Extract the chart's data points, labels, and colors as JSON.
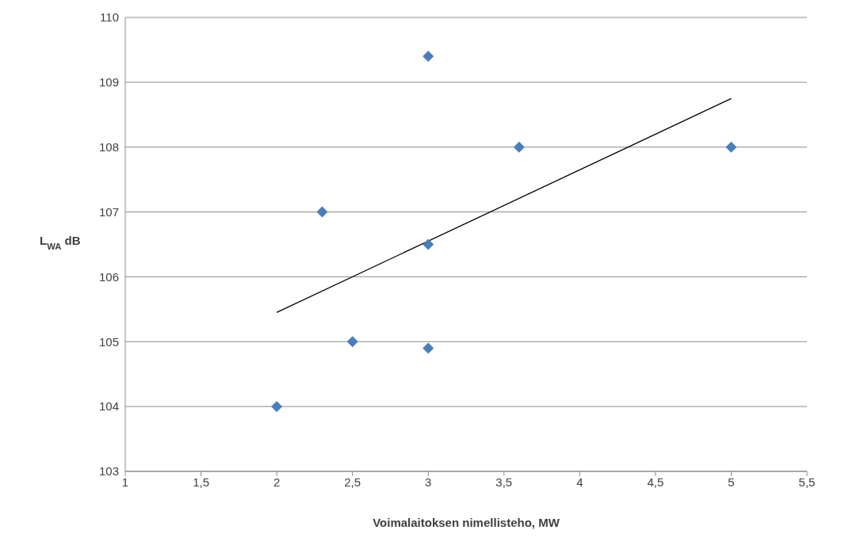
{
  "chart_data": {
    "type": "scatter",
    "xlabel": "Voimalaitoksen nimellisteho, MW",
    "ylabel": "L$_{WA}$ dB",
    "xlim": [
      1,
      5.5
    ],
    "xticks": [
      1,
      {
        "value": 1.5,
        "label": "1,5"
      },
      2,
      {
        "value": 2.5,
        "label": "2,5"
      },
      3,
      {
        "value": 3.5,
        "label": "3,5"
      },
      4,
      {
        "value": 4.5,
        "label": "4,5"
      },
      5,
      {
        "value": 5.5,
        "label": "5,5"
      }
    ],
    "ylim": [
      103,
      110
    ],
    "yticks": [
      103,
      104,
      105,
      106,
      107,
      108,
      109,
      110
    ],
    "grid": "y",
    "legend": false,
    "series": [
      {
        "color": "#4a7ebb",
        "marker": "diamond",
        "x": [
          2,
          2.3,
          2.5,
          3,
          3,
          3,
          3.6,
          5
        ],
        "values": [
          104,
          107,
          105,
          109.4,
          106.5,
          104.9,
          108,
          108
        ]
      },
      {
        "type": "line",
        "color": "#000000",
        "marker": "none",
        "line_style": "solid",
        "x": [
          2,
          5
        ],
        "values": [
          105.45,
          108.75
        ]
      }
    ]
  }
}
